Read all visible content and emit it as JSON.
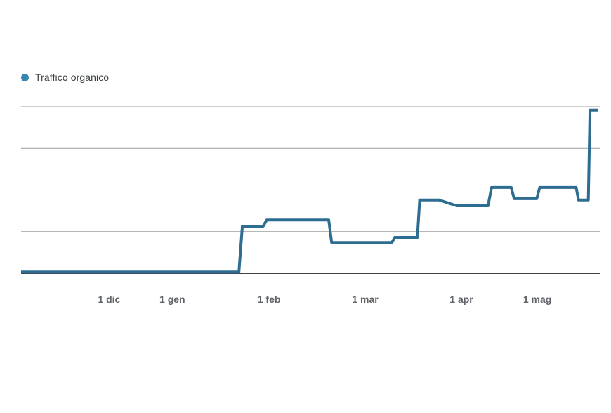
{
  "legend": {
    "label": "Traffico organico"
  },
  "colors": {
    "series_blue": "#2e6d92",
    "legend_dot": "#3787b2",
    "gridline": "#9e9e9e",
    "axis": "#424242",
    "tick_label": "#5f6368",
    "legend_text": "#3c4043",
    "background": "#ffffff"
  },
  "chart_data": {
    "type": "line",
    "title": "",
    "legend_position": "top-left",
    "grid": true,
    "x_axis": {
      "tick_labels": [
        "1 dic",
        "1 gen",
        "1 feb",
        "1 mar",
        "1 apr",
        "1 mag"
      ],
      "tick_positions_pct": [
        15.2,
        26.1,
        42.8,
        59.4,
        76.0,
        89.1
      ],
      "xlim_pct": [
        0,
        100
      ]
    },
    "y_axis": {
      "labels_visible": false,
      "unit": "relative-gridline-units",
      "gridline_values": [
        1,
        2,
        3,
        4
      ],
      "ylim": [
        0,
        4.4
      ]
    },
    "series": [
      {
        "name": "Traffico organico",
        "points_pct_units": [
          [
            0,
            0.03
          ],
          [
            37.6,
            0.03
          ],
          [
            38.2,
            1.13
          ],
          [
            41.8,
            1.13
          ],
          [
            42.4,
            1.28
          ],
          [
            53.1,
            1.28
          ],
          [
            53.6,
            0.74
          ],
          [
            64.0,
            0.74
          ],
          [
            64.5,
            0.86
          ],
          [
            68.4,
            0.86
          ],
          [
            68.8,
            1.76
          ],
          [
            72.1,
            1.76
          ],
          [
            75.2,
            1.62
          ],
          [
            80.6,
            1.62
          ],
          [
            81.2,
            2.06
          ],
          [
            84.6,
            2.06
          ],
          [
            85.1,
            1.79
          ],
          [
            89.0,
            1.79
          ],
          [
            89.5,
            2.06
          ],
          [
            95.8,
            2.06
          ],
          [
            96.2,
            1.76
          ],
          [
            97.9,
            1.76
          ],
          [
            98.2,
            3.92
          ],
          [
            99.6,
            3.92
          ]
        ]
      }
    ]
  }
}
